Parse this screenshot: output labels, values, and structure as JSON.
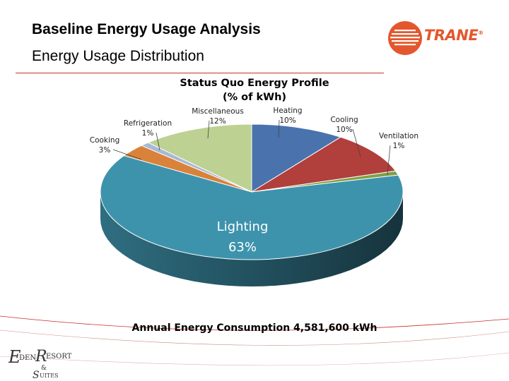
{
  "slide": {
    "title": "Baseline Energy Usage Analysis",
    "subtitle": "Energy Usage Distribution",
    "footnote": "Annual Energy Consumption 4,581,600 kWh"
  },
  "logo": {
    "brand_text": "TRANE",
    "brand_symbol": "®",
    "brand_color": "#e4572e"
  },
  "property_logo": {
    "text": "EDEN RESORT & SUITES"
  },
  "chart_data": {
    "type": "pie",
    "title_line1": "Status Quo Energy Profile",
    "title_line2": "(% of kWh)",
    "style": "3d",
    "unit": "% of kWh",
    "slices": [
      {
        "name": "Heating",
        "value": 10,
        "label": "10%",
        "color": "#4a72ad"
      },
      {
        "name": "Cooling",
        "value": 10,
        "label": "10%",
        "color": "#b13f3b"
      },
      {
        "name": "Ventilation",
        "value": 1,
        "label": "1%",
        "color": "#7ea046"
      },
      {
        "name": "Lighting",
        "value": 63,
        "label": "63%",
        "color": "#3e93ac"
      },
      {
        "name": "Cooking",
        "value": 3,
        "label": "3%",
        "color": "#d9823a"
      },
      {
        "name": "Refrigeration",
        "value": 1,
        "label": "1%",
        "color": "#a7b9d6"
      },
      {
        "name": "Miscellaneous",
        "value": 12,
        "label": "12%",
        "color": "#bdd192"
      }
    ]
  }
}
